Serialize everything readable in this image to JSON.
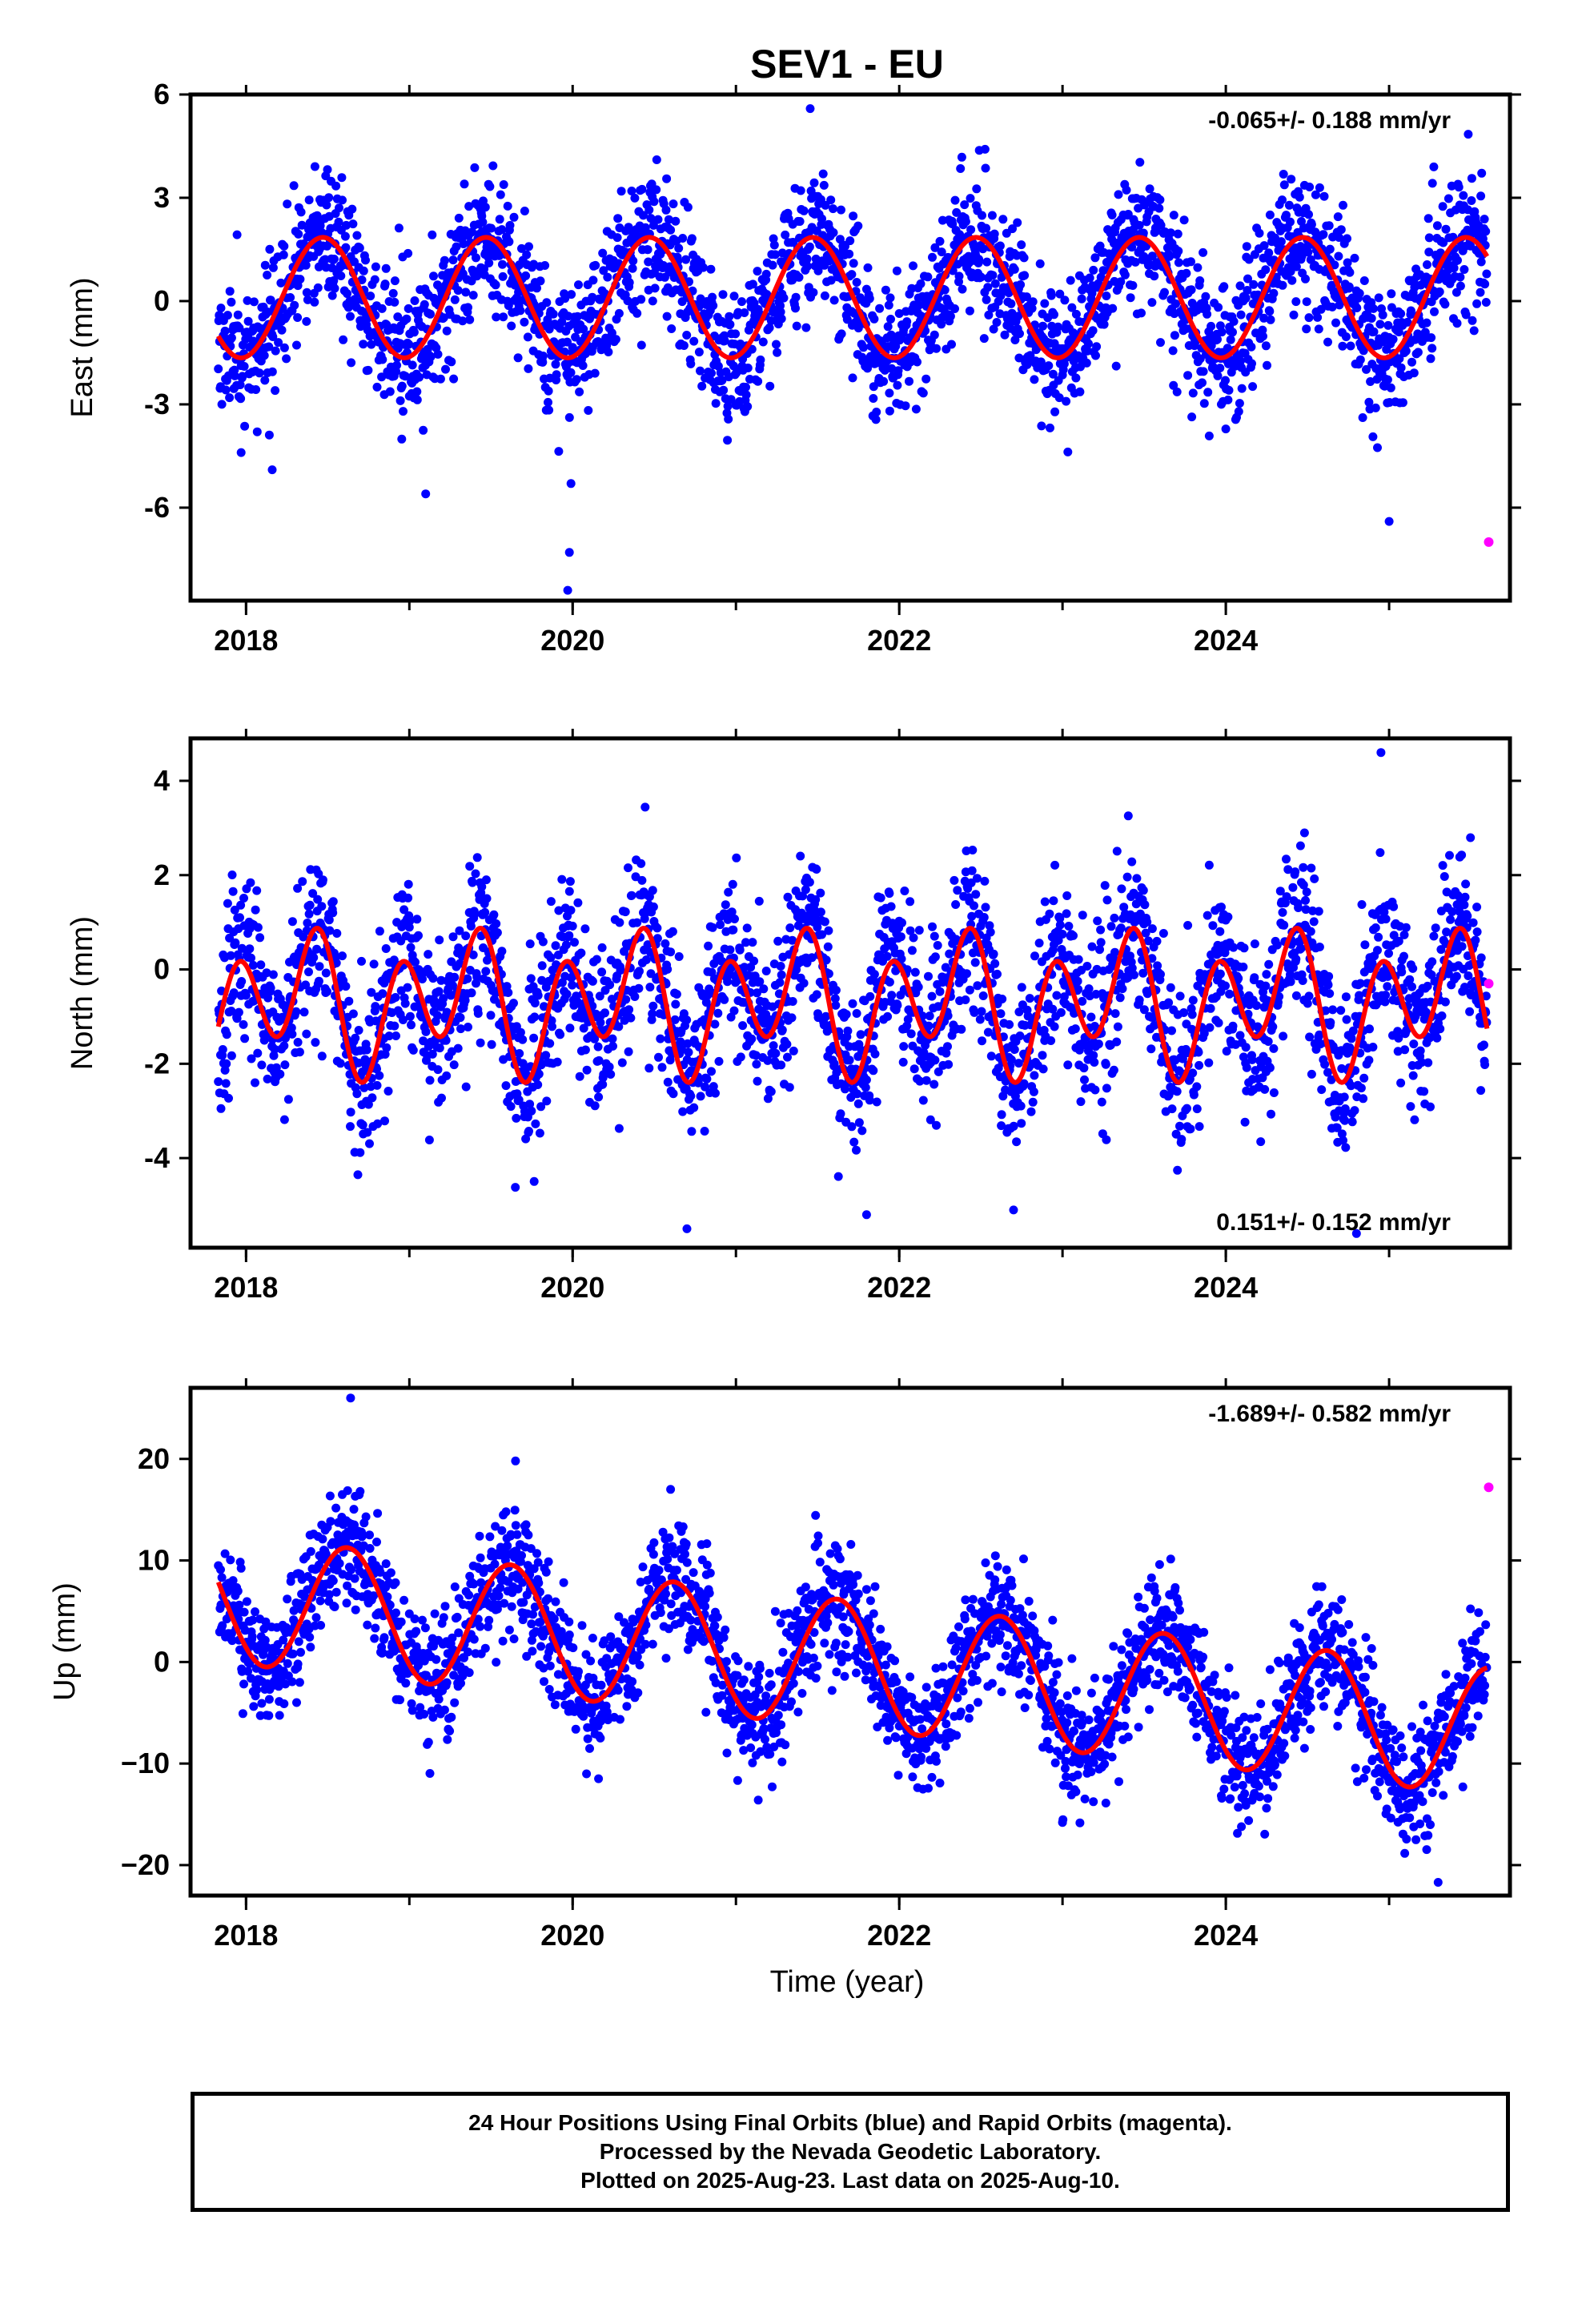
{
  "title": "SEV1 - EU",
  "colors": {
    "final_orbits": "#0000ff",
    "rapid_orbits": "#ff00ff",
    "model": "#ff0000",
    "frame": "#000000"
  },
  "chart_data": [
    {
      "type": "scatter",
      "component": "east",
      "ylabel": "East (mm)",
      "ylim": [
        -8.7,
        6.0
      ],
      "yticks": [
        -6,
        -3,
        0,
        3,
        6
      ],
      "yticklabels": [
        "-6",
        "-3",
        "0",
        "3",
        "6"
      ],
      "xlim": [
        2017.66,
        2025.74
      ],
      "xticks": [
        2018,
        2020,
        2022,
        2024
      ],
      "xticklabels": [
        "2018",
        "2020",
        "2022",
        "2024"
      ],
      "rate_label": "-0.065+/- 0.188 mm/yr",
      "rate_position": "top-right",
      "series": [
        {
          "role": "final_orbits",
          "color": "#0000ff",
          "x_range": [
            2017.83,
            2025.6
          ],
          "amplitude": 1.75,
          "noise_sd": 1.0,
          "seed": 11
        },
        {
          "role": "model",
          "color": "#ff0000",
          "model": {
            "intercept": 0.1,
            "annual_amplitude": 1.75,
            "annual_phase": 2018.47,
            "semiannual_amplitude": 0.0,
            "semiannual_phase": 2018.2
          }
        },
        {
          "role": "rapid_orbits",
          "color": "#ff00ff",
          "points": [
            [
              2025.61,
              -7.0
            ]
          ]
        }
      ],
      "outliers": [
        [
          2018.16,
          -4.9
        ],
        [
          2019.1,
          -5.6
        ],
        [
          2019.99,
          -5.3
        ],
        [
          2019.98,
          -7.3
        ],
        [
          2019.97,
          -8.4
        ],
        [
          2025.0,
          -6.4
        ],
        [
          2017.97,
          -4.4
        ]
      ]
    },
    {
      "type": "scatter",
      "component": "north",
      "ylabel": "North (mm)",
      "ylim": [
        -5.9,
        4.9
      ],
      "yticks": [
        -4,
        -2,
        0,
        2,
        4
      ],
      "yticklabels": [
        "-4",
        "-2",
        "0",
        "2",
        "4"
      ],
      "xlim": [
        2017.66,
        2025.74
      ],
      "xticks": [
        2018,
        2020,
        2022,
        2024
      ],
      "xticklabels": [
        "2018",
        "2020",
        "2022",
        "2024"
      ],
      "rate_label": "0.151+/- 0.152 mm/yr",
      "rate_position": "bottom-right",
      "series": [
        {
          "role": "final_orbits",
          "color": "#0000ff",
          "x_range": [
            2017.83,
            2025.6
          ],
          "amplitude": 0.0,
          "noise_sd": 0.9,
          "seed": 23
        },
        {
          "role": "model",
          "color": "#ff0000",
          "model": {
            "intercept": -0.7,
            "annual_amplitude": 0.6,
            "annual_phase": 2018.3,
            "semiannual_amplitude": 1.2,
            "semiannual_phase": 2018.45
          }
        },
        {
          "role": "rapid_orbits",
          "color": "#ff00ff",
          "points": [
            [
              2025.61,
              -0.3
            ]
          ]
        }
      ],
      "outliers": [
        [
          2020.7,
          -5.5
        ],
        [
          2021.8,
          -5.2
        ],
        [
          2022.7,
          -5.1
        ],
        [
          2024.8,
          -5.6
        ],
        [
          2024.95,
          4.6
        ]
      ]
    },
    {
      "type": "scatter",
      "component": "up",
      "ylabel": "Up (mm)",
      "ylim": [
        -23,
        27
      ],
      "yticks": [
        -20,
        -10,
        0,
        10,
        20
      ],
      "yticklabels": [
        "−20",
        "−10",
        "0",
        "10",
        "20"
      ],
      "xlim": [
        2017.66,
        2025.74
      ],
      "xticks": [
        2018,
        2020,
        2022,
        2024
      ],
      "xticklabels": [
        "2018",
        "2020",
        "2022",
        "2024"
      ],
      "xlabel": "Time (year)",
      "rate_label": "-1.689+/- 0.582 mm/yr",
      "rate_position": "top-right",
      "series": [
        {
          "role": "final_orbits",
          "color": "#0000ff",
          "x_range": [
            2017.83,
            2025.6
          ],
          "amplitude": 6.3,
          "noise_sd": 3.0,
          "seed": 37
        },
        {
          "role": "model",
          "color": "#ff0000",
          "model": {
            "intercept": 6.3,
            "slope": -1.689,
            "annual_amplitude": 6.3,
            "annual_phase": 2018.62,
            "semiannual_amplitude": 0.0,
            "semiannual_phase": 2018.2
          }
        },
        {
          "role": "rapid_orbits",
          "color": "#ff00ff",
          "points": [
            [
              2025.61,
              17.2
            ]
          ]
        }
      ],
      "outliers": [
        [
          2018.64,
          26.0
        ],
        [
          2019.65,
          19.8
        ],
        [
          2025.3,
          -21.7
        ],
        [
          2020.6,
          17.0
        ],
        [
          2023.0,
          -15.8
        ]
      ]
    }
  ],
  "caption": {
    "line1": "24 Hour Positions Using Final Orbits (blue) and Rapid Orbits (magenta).",
    "line2": "Processed by the Nevada Geodetic Laboratory.",
    "line3": "Plotted on 2025-Aug-23. Last data on 2025-Aug-10."
  }
}
